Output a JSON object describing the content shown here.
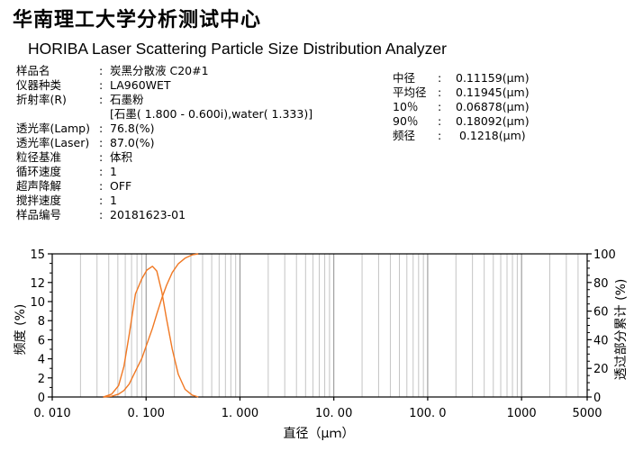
{
  "header": {
    "title": "华南理工大学分析测试中心",
    "subtitle": "HORIBA  Laser Scattering Particle Size Distribution Analyzer"
  },
  "sample_info": [
    {
      "label": "样品名",
      "value": "炭黑分散液 C20#1"
    },
    {
      "label": "仪器种类",
      "value": "LA960WET"
    },
    {
      "label": "折射率(R)",
      "value": "石墨粉"
    },
    {
      "label": "",
      "value": "[石墨( 1.800 -  0.600i),water( 1.333)]"
    },
    {
      "label": "透光率(Lamp)",
      "value": "76.8(%)"
    },
    {
      "label": "透光率(Laser)",
      "value": "87.0(%)"
    },
    {
      "label": "粒径基准",
      "value": "体积"
    },
    {
      "label": "循环速度",
      "value": "1"
    },
    {
      "label": "超声降解",
      "value": "OFF"
    },
    {
      "label": "搅拌速度",
      "value": "1"
    },
    {
      "label": "样品编号",
      "value": "20181623-01"
    }
  ],
  "results": [
    {
      "label": "中径",
      "value": "0.11159(µm)"
    },
    {
      "label": "平均径",
      "value": "0.11945(µm)"
    },
    {
      "label": "10％",
      "value": "0.06878(µm)"
    },
    {
      "label": "90％",
      "value": "0.18092(µm)"
    },
    {
      "label": "频径",
      "value": "0.1218(µm)"
    }
  ],
  "separator": ":",
  "chart_data": {
    "type": "line",
    "xlabel": "直径（μｍ）",
    "ylabel": "频度 (%)",
    "y2label": "透过部分累计 (%)",
    "xscale": "log",
    "xlim": [
      0.01,
      5000
    ],
    "ylim": [
      0,
      15
    ],
    "y2lim": [
      0,
      100
    ],
    "x_tick_values": [
      0.01,
      0.1,
      1,
      10,
      100,
      1000,
      5000
    ],
    "x_tick_labels": [
      "0. 010",
      "0. 100",
      "1. 000",
      "10. 00",
      "100. 0",
      "1000",
      "5000"
    ],
    "y_tick_values": [
      0,
      2,
      4,
      6,
      8,
      10,
      12,
      15
    ],
    "y_tick_labels": [
      "0",
      "2",
      "4",
      "6",
      "8",
      "10",
      "12",
      "15"
    ],
    "y2_tick_values": [
      0,
      20,
      40,
      60,
      80,
      100
    ],
    "y2_tick_labels": [
      "0",
      "20",
      "40",
      "60",
      "80",
      "100"
    ],
    "grid": true,
    "line_color": "#f07823",
    "series": [
      {
        "axis": "left",
        "x": [
          0.035,
          0.043,
          0.051,
          0.058,
          0.066,
          0.077,
          0.09,
          0.102,
          0.117,
          0.13,
          0.147,
          0.165,
          0.19,
          0.22,
          0.26,
          0.31,
          0.36
        ],
        "y": [
          0,
          0.3,
          1.2,
          3.2,
          6.5,
          10.8,
          12.4,
          13.3,
          13.7,
          13.2,
          11.0,
          8.2,
          5.0,
          2.4,
          0.8,
          0.2,
          0
        ]
      },
      {
        "axis": "right",
        "x": [
          0.035,
          0.043,
          0.051,
          0.058,
          0.066,
          0.077,
          0.09,
          0.102,
          0.117,
          0.13,
          0.147,
          0.165,
          0.19,
          0.22,
          0.26,
          0.31,
          0.36
        ],
        "y": [
          0,
          0.5,
          2,
          4.5,
          9,
          18,
          27,
          37,
          48,
          58,
          69,
          78,
          87,
          93,
          97,
          99.3,
          100
        ]
      }
    ]
  }
}
